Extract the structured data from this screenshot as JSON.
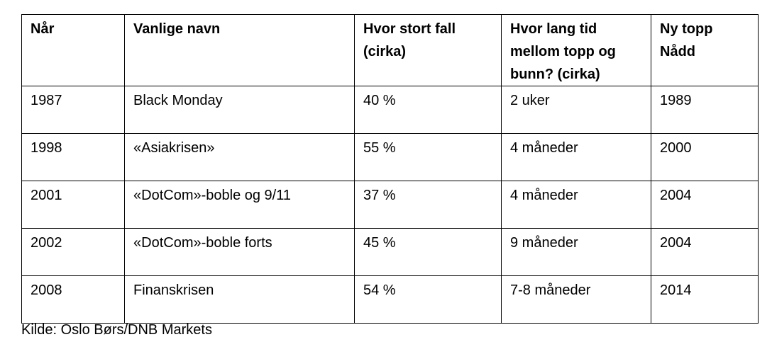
{
  "table": {
    "header": [
      "Når",
      "Vanlige navn",
      "Hvor stort fall (cirka)",
      "Hvor lang tid mellom topp og bunn? (cirka)",
      "Ny topp Nådd"
    ],
    "rows": [
      [
        "1987",
        "Black Monday",
        "40 %",
        "2 uker",
        "1989"
      ],
      [
        "1998",
        "«Asiakrisen»",
        "55 %",
        "4 måneder",
        "2000"
      ],
      [
        "2001",
        "«DotCom»-boble og 9/11",
        "37 %",
        "4 måneder",
        "2004"
      ],
      [
        "2002",
        "«DotCom»-boble forts",
        "45 %",
        "9 måneder",
        "2004"
      ],
      [
        "2008",
        "Finanskrisen",
        "54 %",
        "7-8 måneder",
        "2014"
      ]
    ]
  },
  "source": "Kilde: Oslo Børs/DNB Markets"
}
